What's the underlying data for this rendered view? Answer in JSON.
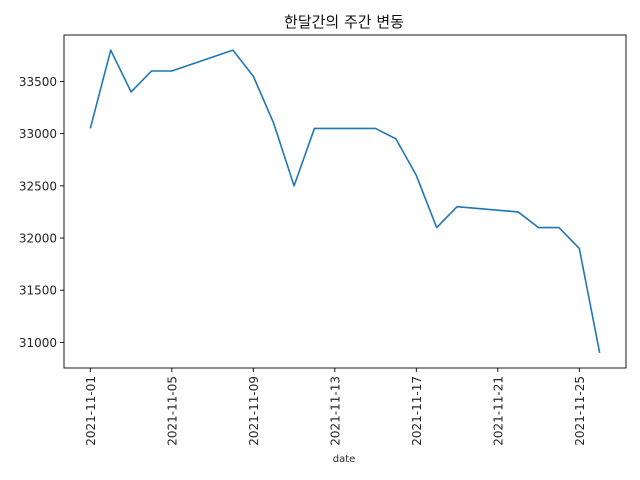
{
  "chart_data": {
    "type": "line",
    "title": "한달간의 주간 변동",
    "xlabel": "date",
    "ylabel": "",
    "x": [
      "2021-11-01",
      "2021-11-02",
      "2021-11-03",
      "2021-11-04",
      "2021-11-05",
      "2021-11-08",
      "2021-11-09",
      "2021-11-10",
      "2021-11-11",
      "2021-11-12",
      "2021-11-15",
      "2021-11-16",
      "2021-11-17",
      "2021-11-18",
      "2021-11-19",
      "2021-11-22",
      "2021-11-23",
      "2021-11-24",
      "2021-11-25",
      "2021-11-26"
    ],
    "series": [
      {
        "values": [
          33050,
          33800,
          33400,
          33600,
          33600,
          33800,
          33550,
          33100,
          32500,
          33050,
          33050,
          32950,
          32600,
          32100,
          32300,
          32250,
          32100,
          32100,
          31900,
          30900
        ]
      }
    ],
    "xticks": [
      "2021-11-01",
      "2021-11-05",
      "2021-11-09",
      "2021-11-13",
      "2021-11-17",
      "2021-11-21",
      "2021-11-25"
    ],
    "yticks": [
      31000,
      31500,
      32000,
      32500,
      33000,
      33500
    ],
    "xlim": [
      "2021-10-30T17:00",
      "2021-11-27T07:00"
    ],
    "ylim": [
      30755,
      33945
    ],
    "line_color": "#1f77b4",
    "grid": false,
    "legend": "none"
  }
}
